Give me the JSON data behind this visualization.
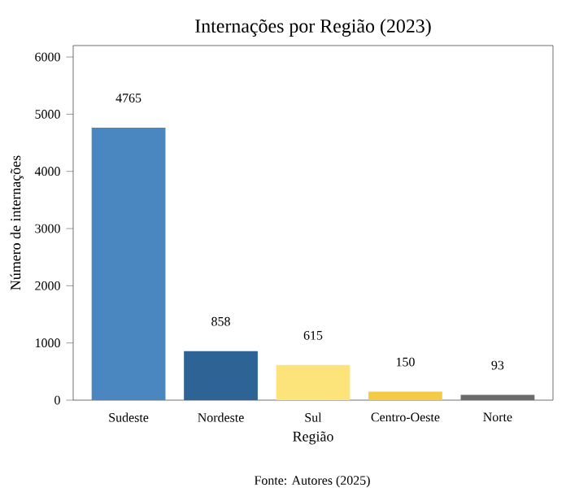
{
  "chart_data": {
    "type": "bar",
    "title": "Internações por Região (2023)",
    "xlabel": "Região",
    "ylabel": "Número de internações",
    "categories": [
      "Sudeste",
      "Nordeste",
      "Sul",
      "Centro-Oeste",
      "Norte"
    ],
    "values": [
      4765,
      858,
      615,
      150,
      93
    ],
    "colors": [
      "#4a86c0",
      "#2d6395",
      "#fde47a",
      "#f5cb45",
      "#6b6b6b"
    ],
    "ylim": [
      0,
      6200
    ],
    "yticks": [
      0,
      1000,
      2000,
      3000,
      4000,
      5000,
      6000
    ],
    "data_labels": true,
    "annotations": [
      "Fonte: Autores (2025)"
    ]
  }
}
